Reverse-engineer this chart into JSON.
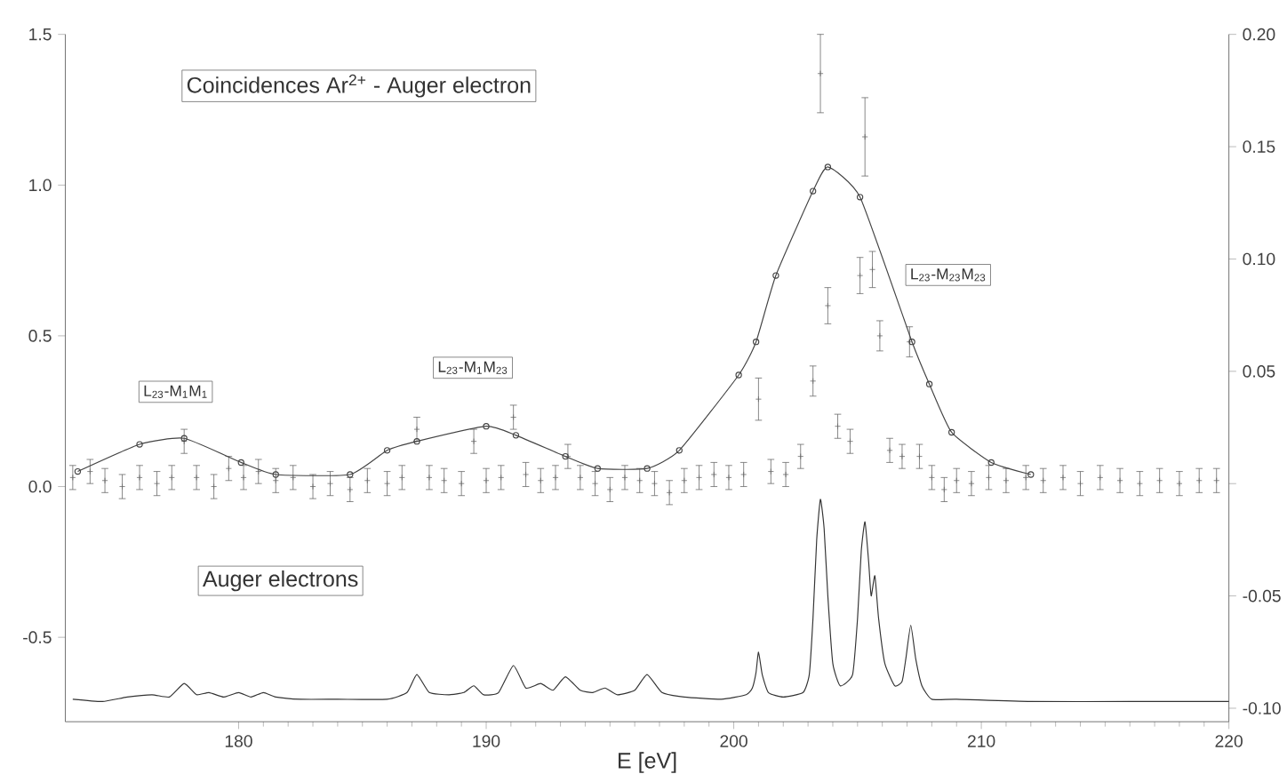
{
  "chart_data": {
    "type": "line",
    "xlabel": "E [eV]",
    "xlim": [
      173,
      220
    ],
    "xticks": [
      180,
      190,
      200,
      210,
      220
    ],
    "ylim": [
      -0.78,
      1.5
    ],
    "yticks": [
      -0.5,
      {
        "value": 0,
        "label": "0.0"
      },
      0.5,
      {
        "value": 1,
        "label": "1.0"
      },
      1.5
    ],
    "y2lim": [
      -0.106,
      0.2
    ],
    "y2ticks": [
      {
        "value": -0.1,
        "label": "-0.10"
      },
      -0.05,
      {
        "value": 0,
        "label": null
      },
      0.05,
      {
        "value": 0.1,
        "label": "0.10"
      },
      0.15,
      {
        "value": 0.2,
        "label": "0.20"
      }
    ],
    "grid": false,
    "annotations": [
      "Coincidences Ar$^{2+}$ - Auger electron",
      "L$_{23}$-M$_{1}$M$_{1}$",
      "L$_{23}$-M$_{1}$M$_{23}$",
      "L$_{23}$-M$_{23}$M$_{23}$",
      "Auger electrons"
    ],
    "series": [
      {
        "type": "scatter",
        "marker": "cross",
        "color": "#666666",
        "x": [
          173.3,
          174,
          174.6,
          175.3,
          176,
          176.7,
          177.3,
          177.8,
          178.3,
          179,
          179.6,
          180.2,
          180.8,
          181.5,
          182.2,
          183,
          183.7,
          184.5,
          185.2,
          186,
          186.6,
          187.2,
          187.7,
          188.3,
          189,
          189.5,
          190,
          190.6,
          191.1,
          191.6,
          192.2,
          192.8,
          193.3,
          193.8,
          194.4,
          195,
          195.6,
          196.2,
          196.8,
          197.4,
          198,
          198.6,
          199.2,
          199.8,
          200.4,
          201.0,
          201.5,
          202.1,
          202.7,
          203.2,
          203.5,
          203.8,
          204.2,
          204.7,
          205.1,
          205.3,
          205.6,
          205.9,
          206.3,
          206.8,
          207.1,
          207.5,
          208,
          208.5,
          209,
          209.6,
          210.3,
          211,
          211.8,
          212.5,
          213.3,
          214,
          214.8,
          215.6,
          216.4,
          217.2,
          218,
          218.8,
          219.5
        ],
        "values": [
          0.03,
          0.05,
          0.02,
          0.0,
          0.03,
          0.01,
          0.03,
          0.15,
          0.03,
          0.0,
          0.06,
          0.03,
          0.05,
          0.02,
          0.03,
          0.0,
          0.01,
          -0.01,
          0.02,
          0.01,
          0.03,
          0.19,
          0.03,
          0.02,
          0.01,
          0.15,
          0.02,
          0.03,
          0.23,
          0.04,
          0.02,
          0.03,
          0.1,
          0.03,
          0.01,
          -0.01,
          0.03,
          0.02,
          0.01,
          -0.02,
          0.02,
          0.03,
          0.04,
          0.03,
          0.04,
          0.29,
          0.05,
          0.04,
          0.1,
          0.35,
          1.37,
          0.6,
          0.2,
          0.15,
          0.7,
          1.16,
          0.72,
          0.5,
          0.12,
          0.1,
          0.48,
          0.1,
          0.03,
          -0.01,
          0.02,
          0.01,
          0.03,
          0.02,
          0.03,
          0.02,
          0.03,
          0.01,
          0.03,
          0.02,
          0.01,
          0.02,
          0.01,
          0.02,
          0.02
        ],
        "errors": [
          0.04,
          0.04,
          0.04,
          0.04,
          0.04,
          0.04,
          0.04,
          0.04,
          0.04,
          0.04,
          0.04,
          0.04,
          0.04,
          0.04,
          0.04,
          0.04,
          0.04,
          0.04,
          0.04,
          0.04,
          0.04,
          0.04,
          0.04,
          0.04,
          0.04,
          0.04,
          0.04,
          0.04,
          0.04,
          0.04,
          0.04,
          0.04,
          0.04,
          0.04,
          0.04,
          0.04,
          0.04,
          0.04,
          0.04,
          0.04,
          0.04,
          0.04,
          0.04,
          0.04,
          0.04,
          0.07,
          0.04,
          0.04,
          0.04,
          0.05,
          0.13,
          0.06,
          0.04,
          0.04,
          0.06,
          0.13,
          0.06,
          0.05,
          0.04,
          0.04,
          0.05,
          0.04,
          0.04,
          0.04,
          0.04,
          0.04,
          0.04,
          0.04,
          0.04,
          0.04,
          0.04,
          0.04,
          0.04,
          0.04,
          0.04,
          0.04,
          0.04,
          0.04,
          0.04
        ]
      },
      {
        "marker": "circle",
        "color": "#444444",
        "x": [
          173.5,
          176,
          177.8,
          180.1,
          181.5,
          184.5,
          186,
          187.2,
          190,
          191.2,
          193.2,
          194.5,
          196.5,
          197.8,
          200.2,
          200.9,
          201.7,
          203.2,
          203.8,
          205.1,
          207.2,
          207.9,
          208.8,
          210.4,
          212
        ],
        "values": [
          0.05,
          0.14,
          0.16,
          0.08,
          0.04,
          0.04,
          0.12,
          0.15,
          0.2,
          0.17,
          0.1,
          0.06,
          0.06,
          0.12,
          0.37,
          0.48,
          0.7,
          0.98,
          1.06,
          0.96,
          0.48,
          0.34,
          0.18,
          0.08,
          0.04
        ]
      },
      {
        "axis": "y2",
        "color": "#333333",
        "x": [
          173.3,
          174.5,
          175.5,
          176.5,
          177.2,
          177.8,
          178.3,
          178.8,
          179.4,
          180,
          180.5,
          181,
          181.5,
          182.5,
          184,
          186,
          186.8,
          187.2,
          187.7,
          188.5,
          189.1,
          189.5,
          189.9,
          190.5,
          191.1,
          191.6,
          192.2,
          192.7,
          193.2,
          193.8,
          194.3,
          194.8,
          195.3,
          196,
          196.5,
          197.1,
          198,
          199.5,
          200.5,
          200.75,
          200.9,
          201.0,
          201.15,
          201.4,
          202,
          202.8,
          203.05,
          203.2,
          203.35,
          203.5,
          203.65,
          203.8,
          204.0,
          204.3,
          204.8,
          205.0,
          205.15,
          205.3,
          205.45,
          205.55,
          205.7,
          205.85,
          206.1,
          206.5,
          206.8,
          206.95,
          207.15,
          207.35,
          207.6,
          208,
          209,
          212,
          216,
          220
        ],
        "values": [
          -0.096,
          -0.097,
          -0.095,
          -0.094,
          -0.095,
          -0.089,
          -0.094,
          -0.093,
          -0.095,
          -0.093,
          -0.095,
          -0.093,
          -0.095,
          -0.096,
          -0.096,
          -0.096,
          -0.093,
          -0.085,
          -0.093,
          -0.094,
          -0.093,
          -0.09,
          -0.094,
          -0.093,
          -0.081,
          -0.091,
          -0.089,
          -0.092,
          -0.086,
          -0.092,
          -0.093,
          -0.091,
          -0.094,
          -0.092,
          -0.085,
          -0.093,
          -0.095,
          -0.096,
          -0.094,
          -0.091,
          -0.084,
          -0.075,
          -0.085,
          -0.093,
          -0.095,
          -0.093,
          -0.085,
          -0.06,
          -0.025,
          -0.007,
          -0.02,
          -0.05,
          -0.08,
          -0.09,
          -0.085,
          -0.06,
          -0.03,
          -0.017,
          -0.035,
          -0.05,
          -0.041,
          -0.06,
          -0.08,
          -0.09,
          -0.088,
          -0.078,
          -0.063,
          -0.078,
          -0.09,
          -0.096,
          -0.096,
          -0.097,
          -0.097,
          -0.097
        ]
      }
    ]
  }
}
